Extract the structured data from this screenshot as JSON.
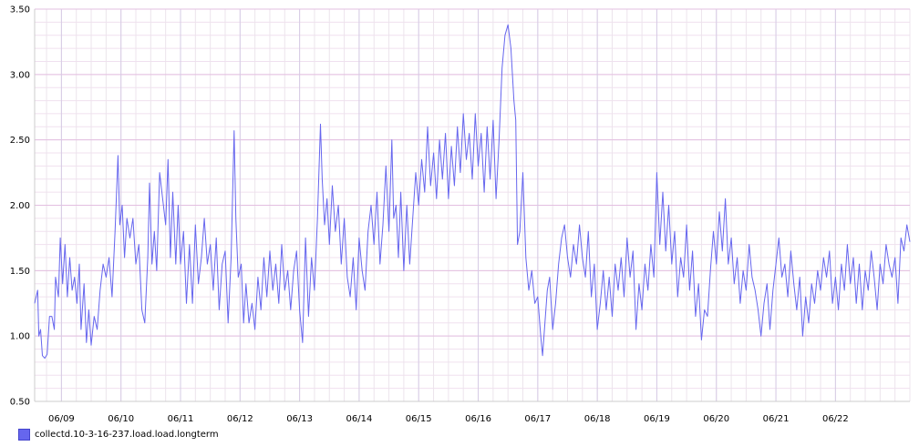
{
  "chart_data": {
    "type": "line",
    "title": "",
    "xlabel": "",
    "ylabel": "",
    "ylim": [
      0.5,
      3.5
    ],
    "y_ticks": [
      "0.50",
      "1.00",
      "1.50",
      "2.00",
      "2.50",
      "3.00",
      "3.50"
    ],
    "x_ticks": [
      "06/09",
      "06/10",
      "06/11",
      "06/12",
      "06/13",
      "06/14",
      "06/15",
      "06/16",
      "06/17",
      "06/18",
      "06/19",
      "06/20",
      "06/21",
      "06/22"
    ],
    "x_range_days": [
      8.55,
      23.25
    ],
    "grid": true,
    "legend_position": "bottom-left",
    "series": [
      {
        "name": "collectd.10-3-16-237.load.load.longterm",
        "color": "#6666ee",
        "points": [
          [
            8.55,
            1.25
          ],
          [
            8.6,
            1.35
          ],
          [
            8.62,
            1.0
          ],
          [
            8.65,
            1.05
          ],
          [
            8.68,
            0.85
          ],
          [
            8.72,
            0.83
          ],
          [
            8.76,
            0.86
          ],
          [
            8.8,
            1.15
          ],
          [
            8.84,
            1.15
          ],
          [
            8.88,
            1.05
          ],
          [
            8.9,
            1.45
          ],
          [
            8.95,
            1.3
          ],
          [
            8.98,
            1.75
          ],
          [
            9.02,
            1.4
          ],
          [
            9.06,
            1.7
          ],
          [
            9.1,
            1.3
          ],
          [
            9.14,
            1.6
          ],
          [
            9.18,
            1.35
          ],
          [
            9.22,
            1.45
          ],
          [
            9.26,
            1.25
          ],
          [
            9.3,
            1.55
          ],
          [
            9.33,
            1.05
          ],
          [
            9.38,
            1.4
          ],
          [
            9.42,
            0.95
          ],
          [
            9.46,
            1.2
          ],
          [
            9.5,
            0.93
          ],
          [
            9.55,
            1.15
          ],
          [
            9.6,
            1.05
          ],
          [
            9.65,
            1.35
          ],
          [
            9.7,
            1.55
          ],
          [
            9.75,
            1.45
          ],
          [
            9.8,
            1.6
          ],
          [
            9.85,
            1.3
          ],
          [
            9.9,
            1.8
          ],
          [
            9.95,
            2.38
          ],
          [
            9.98,
            1.85
          ],
          [
            10.02,
            2.0
          ],
          [
            10.06,
            1.6
          ],
          [
            10.1,
            1.9
          ],
          [
            10.15,
            1.75
          ],
          [
            10.2,
            1.9
          ],
          [
            10.25,
            1.55
          ],
          [
            10.3,
            1.7
          ],
          [
            10.35,
            1.2
          ],
          [
            10.4,
            1.1
          ],
          [
            10.45,
            1.6
          ],
          [
            10.48,
            2.17
          ],
          [
            10.52,
            1.55
          ],
          [
            10.56,
            1.8
          ],
          [
            10.6,
            1.5
          ],
          [
            10.65,
            2.25
          ],
          [
            10.7,
            2.05
          ],
          [
            10.75,
            1.85
          ],
          [
            10.79,
            2.35
          ],
          [
            10.83,
            1.6
          ],
          [
            10.87,
            2.1
          ],
          [
            10.92,
            1.55
          ],
          [
            10.96,
            2.0
          ],
          [
            11.0,
            1.55
          ],
          [
            11.05,
            1.8
          ],
          [
            11.1,
            1.25
          ],
          [
            11.15,
            1.7
          ],
          [
            11.2,
            1.25
          ],
          [
            11.25,
            1.85
          ],
          [
            11.3,
            1.4
          ],
          [
            11.35,
            1.6
          ],
          [
            11.4,
            1.9
          ],
          [
            11.45,
            1.55
          ],
          [
            11.5,
            1.7
          ],
          [
            11.55,
            1.35
          ],
          [
            11.6,
            1.75
          ],
          [
            11.65,
            1.2
          ],
          [
            11.7,
            1.55
          ],
          [
            11.75,
            1.65
          ],
          [
            11.8,
            1.1
          ],
          [
            11.85,
            1.6
          ],
          [
            11.9,
            2.57
          ],
          [
            11.93,
            1.9
          ],
          [
            11.97,
            1.45
          ],
          [
            12.02,
            1.55
          ],
          [
            12.06,
            1.1
          ],
          [
            12.1,
            1.4
          ],
          [
            12.15,
            1.1
          ],
          [
            12.2,
            1.25
          ],
          [
            12.25,
            1.05
          ],
          [
            12.3,
            1.45
          ],
          [
            12.35,
            1.2
          ],
          [
            12.4,
            1.6
          ],
          [
            12.45,
            1.3
          ],
          [
            12.5,
            1.65
          ],
          [
            12.55,
            1.35
          ],
          [
            12.6,
            1.55
          ],
          [
            12.65,
            1.25
          ],
          [
            12.7,
            1.7
          ],
          [
            12.75,
            1.35
          ],
          [
            12.8,
            1.5
          ],
          [
            12.85,
            1.2
          ],
          [
            12.9,
            1.5
          ],
          [
            12.95,
            1.65
          ],
          [
            13.0,
            1.2
          ],
          [
            13.05,
            0.95
          ],
          [
            13.1,
            1.75
          ],
          [
            13.15,
            1.15
          ],
          [
            13.2,
            1.6
          ],
          [
            13.25,
            1.35
          ],
          [
            13.3,
            1.9
          ],
          [
            13.35,
            2.62
          ],
          [
            13.38,
            2.2
          ],
          [
            13.42,
            1.85
          ],
          [
            13.46,
            2.05
          ],
          [
            13.5,
            1.7
          ],
          [
            13.55,
            2.15
          ],
          [
            13.6,
            1.8
          ],
          [
            13.65,
            2.0
          ],
          [
            13.7,
            1.55
          ],
          [
            13.75,
            1.9
          ],
          [
            13.8,
            1.45
          ],
          [
            13.85,
            1.3
          ],
          [
            13.9,
            1.6
          ],
          [
            13.95,
            1.2
          ],
          [
            14.0,
            1.75
          ],
          [
            14.05,
            1.5
          ],
          [
            14.1,
            1.35
          ],
          [
            14.15,
            1.8
          ],
          [
            14.2,
            2.0
          ],
          [
            14.25,
            1.7
          ],
          [
            14.3,
            2.1
          ],
          [
            14.35,
            1.55
          ],
          [
            14.4,
            1.85
          ],
          [
            14.45,
            2.3
          ],
          [
            14.5,
            1.8
          ],
          [
            14.55,
            2.5
          ],
          [
            14.58,
            1.9
          ],
          [
            14.62,
            2.0
          ],
          [
            14.66,
            1.6
          ],
          [
            14.7,
            2.1
          ],
          [
            14.75,
            1.5
          ],
          [
            14.8,
            2.0
          ],
          [
            14.85,
            1.55
          ],
          [
            14.9,
            1.9
          ],
          [
            14.95,
            2.25
          ],
          [
            15.0,
            2.0
          ],
          [
            15.05,
            2.35
          ],
          [
            15.1,
            2.1
          ],
          [
            15.15,
            2.6
          ],
          [
            15.2,
            2.15
          ],
          [
            15.25,
            2.4
          ],
          [
            15.3,
            2.05
          ],
          [
            15.35,
            2.5
          ],
          [
            15.4,
            2.2
          ],
          [
            15.45,
            2.55
          ],
          [
            15.5,
            2.05
          ],
          [
            15.55,
            2.45
          ],
          [
            15.6,
            2.15
          ],
          [
            15.65,
            2.6
          ],
          [
            15.7,
            2.25
          ],
          [
            15.75,
            2.7
          ],
          [
            15.8,
            2.35
          ],
          [
            15.85,
            2.55
          ],
          [
            15.9,
            2.2
          ],
          [
            15.95,
            2.7
          ],
          [
            16.0,
            2.3
          ],
          [
            16.05,
            2.55
          ],
          [
            16.1,
            2.1
          ],
          [
            16.15,
            2.6
          ],
          [
            16.2,
            2.2
          ],
          [
            16.25,
            2.65
          ],
          [
            16.3,
            2.05
          ],
          [
            16.35,
            2.5
          ],
          [
            16.4,
            3.05
          ],
          [
            16.45,
            3.3
          ],
          [
            16.5,
            3.38
          ],
          [
            16.55,
            3.2
          ],
          [
            16.6,
            2.8
          ],
          [
            16.63,
            2.65
          ],
          [
            16.66,
            1.7
          ],
          [
            16.7,
            1.8
          ],
          [
            16.75,
            2.25
          ],
          [
            16.8,
            1.6
          ],
          [
            16.85,
            1.35
          ],
          [
            16.9,
            1.5
          ],
          [
            16.95,
            1.25
          ],
          [
            17.0,
            1.3
          ],
          [
            17.05,
            1.0
          ],
          [
            17.08,
            0.85
          ],
          [
            17.12,
            1.1
          ],
          [
            17.16,
            1.35
          ],
          [
            17.2,
            1.45
          ],
          [
            17.25,
            1.05
          ],
          [
            17.3,
            1.25
          ],
          [
            17.35,
            1.55
          ],
          [
            17.4,
            1.75
          ],
          [
            17.45,
            1.85
          ],
          [
            17.5,
            1.6
          ],
          [
            17.55,
            1.45
          ],
          [
            17.6,
            1.7
          ],
          [
            17.65,
            1.55
          ],
          [
            17.7,
            1.85
          ],
          [
            17.75,
            1.6
          ],
          [
            17.8,
            1.45
          ],
          [
            17.85,
            1.8
          ],
          [
            17.9,
            1.3
          ],
          [
            17.95,
            1.55
          ],
          [
            18.0,
            1.05
          ],
          [
            18.05,
            1.25
          ],
          [
            18.1,
            1.5
          ],
          [
            18.15,
            1.2
          ],
          [
            18.2,
            1.45
          ],
          [
            18.25,
            1.15
          ],
          [
            18.3,
            1.55
          ],
          [
            18.35,
            1.35
          ],
          [
            18.4,
            1.6
          ],
          [
            18.45,
            1.3
          ],
          [
            18.5,
            1.75
          ],
          [
            18.55,
            1.45
          ],
          [
            18.6,
            1.65
          ],
          [
            18.65,
            1.05
          ],
          [
            18.7,
            1.4
          ],
          [
            18.75,
            1.2
          ],
          [
            18.8,
            1.55
          ],
          [
            18.85,
            1.35
          ],
          [
            18.9,
            1.7
          ],
          [
            18.95,
            1.45
          ],
          [
            19.0,
            2.25
          ],
          [
            19.05,
            1.7
          ],
          [
            19.1,
            2.1
          ],
          [
            19.15,
            1.65
          ],
          [
            19.2,
            2.0
          ],
          [
            19.25,
            1.55
          ],
          [
            19.3,
            1.8
          ],
          [
            19.35,
            1.3
          ],
          [
            19.4,
            1.6
          ],
          [
            19.45,
            1.45
          ],
          [
            19.5,
            1.85
          ],
          [
            19.55,
            1.35
          ],
          [
            19.6,
            1.65
          ],
          [
            19.65,
            1.15
          ],
          [
            19.7,
            1.4
          ],
          [
            19.75,
            0.97
          ],
          [
            19.8,
            1.2
          ],
          [
            19.85,
            1.15
          ],
          [
            19.9,
            1.5
          ],
          [
            19.95,
            1.8
          ],
          [
            20.0,
            1.55
          ],
          [
            20.05,
            1.95
          ],
          [
            20.1,
            1.65
          ],
          [
            20.15,
            2.05
          ],
          [
            20.2,
            1.55
          ],
          [
            20.25,
            1.75
          ],
          [
            20.3,
            1.4
          ],
          [
            20.35,
            1.6
          ],
          [
            20.4,
            1.25
          ],
          [
            20.45,
            1.5
          ],
          [
            20.5,
            1.35
          ],
          [
            20.55,
            1.7
          ],
          [
            20.6,
            1.45
          ],
          [
            20.65,
            1.35
          ],
          [
            20.7,
            1.2
          ],
          [
            20.75,
            1.0
          ],
          [
            20.8,
            1.25
          ],
          [
            20.85,
            1.4
          ],
          [
            20.9,
            1.05
          ],
          [
            20.95,
            1.35
          ],
          [
            21.0,
            1.55
          ],
          [
            21.05,
            1.75
          ],
          [
            21.1,
            1.45
          ],
          [
            21.15,
            1.55
          ],
          [
            21.2,
            1.3
          ],
          [
            21.25,
            1.65
          ],
          [
            21.3,
            1.4
          ],
          [
            21.35,
            1.2
          ],
          [
            21.4,
            1.45
          ],
          [
            21.45,
            1.0
          ],
          [
            21.5,
            1.3
          ],
          [
            21.55,
            1.1
          ],
          [
            21.6,
            1.4
          ],
          [
            21.65,
            1.25
          ],
          [
            21.7,
            1.5
          ],
          [
            21.75,
            1.35
          ],
          [
            21.8,
            1.6
          ],
          [
            21.85,
            1.45
          ],
          [
            21.9,
            1.65
          ],
          [
            21.95,
            1.25
          ],
          [
            22.0,
            1.45
          ],
          [
            22.05,
            1.2
          ],
          [
            22.1,
            1.55
          ],
          [
            22.15,
            1.35
          ],
          [
            22.2,
            1.7
          ],
          [
            22.25,
            1.4
          ],
          [
            22.3,
            1.6
          ],
          [
            22.35,
            1.25
          ],
          [
            22.4,
            1.55
          ],
          [
            22.45,
            1.2
          ],
          [
            22.5,
            1.5
          ],
          [
            22.55,
            1.35
          ],
          [
            22.6,
            1.65
          ],
          [
            22.65,
            1.45
          ],
          [
            22.7,
            1.2
          ],
          [
            22.75,
            1.55
          ],
          [
            22.8,
            1.4
          ],
          [
            22.85,
            1.7
          ],
          [
            22.9,
            1.55
          ],
          [
            22.95,
            1.45
          ],
          [
            23.0,
            1.6
          ],
          [
            23.05,
            1.25
          ],
          [
            23.1,
            1.75
          ],
          [
            23.15,
            1.65
          ],
          [
            23.2,
            1.85
          ],
          [
            23.25,
            1.72
          ]
        ]
      }
    ]
  }
}
